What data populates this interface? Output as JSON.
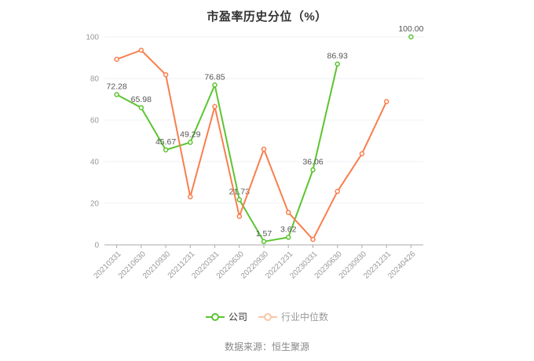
{
  "title": "市盈率历史分位（%）",
  "source": "数据来源：恒生聚源",
  "legend": {
    "items": [
      {
        "label": "公司",
        "marker_color": "#5CC430",
        "label_color": "#333333"
      },
      {
        "label": "行业中位数",
        "marker_color": "#F9C5A7",
        "label_color": "#999999"
      }
    ]
  },
  "chart_data": {
    "type": "line",
    "title": "市盈率历史分位（%）",
    "categories": [
      "20210331",
      "20210630",
      "20210930",
      "20211231",
      "20220331",
      "20220630",
      "20220930",
      "20221231",
      "20230331",
      "20230630",
      "20230930",
      "20231231",
      "20240426"
    ],
    "series": [
      {
        "name": "公司",
        "color": "#5CC430",
        "show_labels": true,
        "values": [
          72.28,
          65.98,
          45.67,
          49.29,
          76.85,
          21.73,
          1.57,
          3.62,
          36.06,
          86.93,
          null,
          null,
          100.0
        ]
      },
      {
        "name": "行业中位数",
        "color": "#FA7E4D",
        "show_labels": false,
        "values": [
          89.2,
          93.6,
          81.8,
          23.1,
          66.5,
          13.7,
          46.0,
          15.6,
          2.6,
          25.7,
          43.8,
          68.9,
          null
        ]
      }
    ],
    "ylim": [
      0,
      100
    ],
    "y_ticks": [
      0,
      20,
      40,
      60,
      80,
      100
    ],
    "grid": true,
    "legend_position": "bottom",
    "colors": {
      "grid_line": "#EDF1F7",
      "axis_line": "#AAAAAA",
      "axis_label": "#999999",
      "data_label": "#555555"
    }
  }
}
